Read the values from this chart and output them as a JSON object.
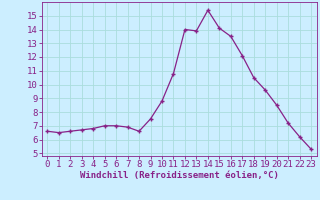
{
  "x": [
    0,
    1,
    2,
    3,
    4,
    5,
    6,
    7,
    8,
    9,
    10,
    11,
    12,
    13,
    14,
    15,
    16,
    17,
    18,
    19,
    20,
    21,
    22,
    23
  ],
  "y": [
    6.6,
    6.5,
    6.6,
    6.7,
    6.8,
    7.0,
    7.0,
    6.9,
    6.6,
    7.5,
    8.8,
    10.8,
    14.0,
    13.9,
    15.4,
    14.1,
    13.5,
    12.1,
    10.5,
    9.6,
    8.5,
    7.2,
    6.2,
    5.3
  ],
  "line_color": "#882288",
  "marker": "+",
  "bg_color": "#cceeff",
  "grid_color": "#aadddd",
  "xlabel": "Windchill (Refroidissement éolien,°C)",
  "yticks": [
    5,
    6,
    7,
    8,
    9,
    10,
    11,
    12,
    13,
    14,
    15
  ],
  "xlim": [
    -0.5,
    23.5
  ],
  "ylim": [
    4.8,
    16.0
  ],
  "xticks": [
    0,
    1,
    2,
    3,
    4,
    5,
    6,
    7,
    8,
    9,
    10,
    11,
    12,
    13,
    14,
    15,
    16,
    17,
    18,
    19,
    20,
    21,
    22,
    23
  ],
  "label_color": "#882288",
  "label_fontsize": 6.5,
  "tick_fontsize": 6.5
}
